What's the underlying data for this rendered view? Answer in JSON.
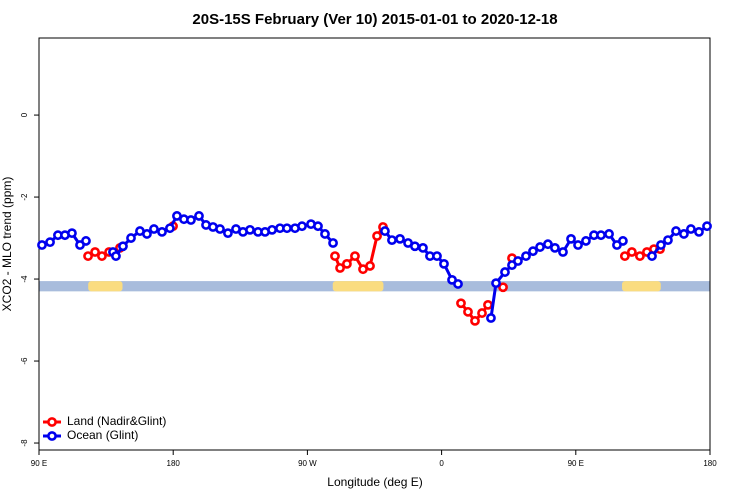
{
  "chart_data": {
    "type": "line",
    "title": "20S-15S February (Ver 10)   2015-01-01 to 2020-12-18",
    "xlabel": "Longitude (deg E)",
    "ylabel": "XCO2 - MLO trend (ppm)",
    "xlim": [
      90,
      540
    ],
    "xticks": [
      {
        "value": 90,
        "label": "90 E"
      },
      {
        "value": 180,
        "label": "180"
      },
      {
        "value": 270,
        "label": "90 W"
      },
      {
        "value": 360,
        "label": "0"
      },
      {
        "value": 450,
        "label": "90 E"
      },
      {
        "value": 540,
        "label": "180"
      }
    ],
    "ylim": [
      -8.17,
      1.88
    ],
    "yticks": [
      0,
      -2,
      -4,
      -6,
      -8
    ],
    "surface_strip": {
      "y_range": [
        -4.05,
        -4.3
      ],
      "ocean_color": "#a8bcdc",
      "land_color": "#fadc80",
      "land": [
        [
          123,
          146
        ],
        [
          287,
          321
        ],
        [
          481,
          507
        ]
      ]
    },
    "legend": "bottom-left",
    "series": [
      {
        "name": "Land (Nadir&Glint)",
        "color": "#ff0000",
        "x": [
          122.9,
          127.6,
          132.2,
          137.0,
          144.3,
          null,
          179.9,
          null,
          288.5,
          291.9,
          296.5,
          301.9,
          307.3,
          312.0,
          316.7,
          320.7,
          null,
          373.0,
          377.7,
          382.4,
          387.1,
          391.1,
          null,
          401.2,
          null,
          407.2,
          null,
          482.9,
          487.6,
          493.0,
          497.7,
          502.4,
          506.5
        ],
        "values": [
          -3.44,
          -3.34,
          -3.44,
          -3.34,
          -3.24,
          null,
          -2.71,
          null,
          -3.44,
          -3.73,
          -3.63,
          -3.44,
          -3.76,
          -3.68,
          -2.95,
          -2.73,
          null,
          -4.59,
          -4.8,
          -5.02,
          -4.83,
          -4.63,
          null,
          -4.2,
          null,
          -3.49,
          null,
          -3.44,
          -3.34,
          -3.44,
          -3.34,
          -3.27,
          -3.27
        ]
      },
      {
        "name": "Ocean (Glint)",
        "color": "#0000ee",
        "x": [
          92.0,
          97.4,
          102.7,
          107.4,
          112.1,
          117.5,
          121.5,
          null,
          139.6,
          141.6,
          146.3,
          151.7,
          157.7,
          162.4,
          167.1,
          172.5,
          177.8,
          182.5,
          187.2,
          191.9,
          197.3,
          202.0,
          206.7,
          211.4,
          216.7,
          222.1,
          226.8,
          231.5,
          236.9,
          241.6,
          246.3,
          251.6,
          256.3,
          261.7,
          266.4,
          272.4,
          277.1,
          281.8,
          287.2,
          null,
          322.0,
          326.7,
          332.1,
          337.5,
          342.1,
          347.5,
          352.2,
          356.9,
          361.6,
          367.0,
          371.0,
          null,
          393.1,
          396.5,
          402.5,
          407.2,
          411.2,
          416.6,
          421.3,
          426.0,
          431.3,
          436.0,
          441.4,
          446.8,
          451.5,
          456.8,
          462.2,
          466.9,
          472.3,
          477.6,
          481.6,
          null,
          501.1,
          507.1,
          511.8,
          517.2,
          522.5,
          527.2,
          532.6,
          538.0
        ],
        "values": [
          -3.17,
          -3.1,
          -2.93,
          -2.93,
          -2.88,
          -3.17,
          -3.07,
          null,
          -3.34,
          -3.44,
          -3.2,
          -3.0,
          -2.83,
          -2.9,
          -2.78,
          -2.85,
          -2.76,
          -2.46,
          -2.54,
          -2.56,
          -2.46,
          -2.68,
          -2.73,
          -2.78,
          -2.88,
          -2.78,
          -2.85,
          -2.8,
          -2.85,
          -2.85,
          -2.8,
          -2.76,
          -2.76,
          -2.76,
          -2.71,
          -2.66,
          -2.71,
          -2.9,
          -3.12,
          null,
          -2.83,
          -3.05,
          -3.02,
          -3.12,
          -3.2,
          -3.24,
          -3.44,
          -3.44,
          -3.63,
          -4.02,
          -4.12,
          null,
          -4.95,
          -4.1,
          -3.83,
          -3.66,
          -3.56,
          -3.44,
          -3.32,
          -3.22,
          -3.15,
          -3.24,
          -3.34,
          -3.02,
          -3.17,
          -3.07,
          -2.93,
          -2.93,
          -2.9,
          -3.17,
          -3.07,
          null,
          -3.44,
          -3.17,
          -3.05,
          -2.83,
          -2.9,
          -2.78,
          -2.85,
          -2.71
        ]
      }
    ]
  }
}
